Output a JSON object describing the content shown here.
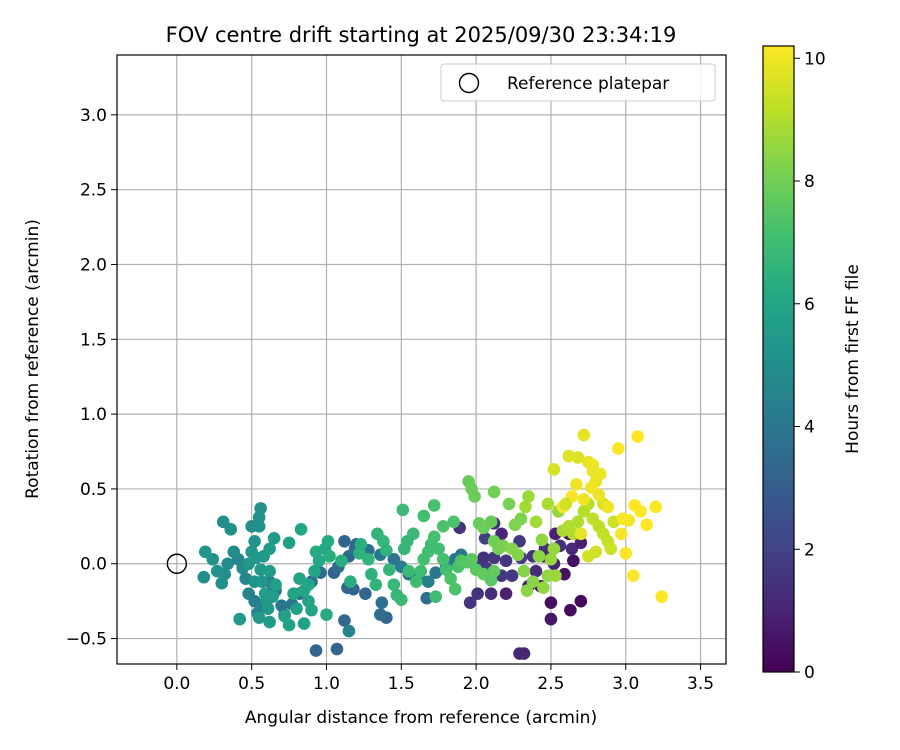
{
  "chart_data": {
    "type": "scatter",
    "title": "FOV centre drift starting at 2025/09/30 23:34:19",
    "xlabel": "Angular distance from reference (arcmin)",
    "ylabel": "Rotation from reference (arcmin)",
    "xlim": [
      -0.4,
      3.67
    ],
    "ylim": [
      -0.67,
      3.4
    ],
    "xticks": [
      0.0,
      0.5,
      1.0,
      1.5,
      2.0,
      2.5,
      3.0,
      3.5
    ],
    "xtick_labels": [
      "0.0",
      "0.5",
      "1.0",
      "1.5",
      "2.0",
      "2.5",
      "3.0",
      "3.5"
    ],
    "yticks": [
      -0.5,
      0.0,
      0.5,
      1.0,
      1.5,
      2.0,
      2.5,
      3.0
    ],
    "ytick_labels": [
      "−0.5",
      "0.0",
      "0.5",
      "1.0",
      "1.5",
      "2.0",
      "2.5",
      "3.0"
    ],
    "grid": true,
    "legend": {
      "position": "top-right",
      "entries": [
        "Reference platepar"
      ]
    },
    "reference_point": {
      "x": 0.0,
      "y": 0.0
    },
    "colorbar": {
      "label": "Hours from first FF file",
      "range": [
        0,
        10.2
      ],
      "ticks": [
        0,
        2,
        4,
        6,
        8,
        10
      ],
      "tick_labels": [
        "0",
        "2",
        "4",
        "6",
        "8",
        "10"
      ],
      "colormap": "viridis"
    },
    "points": [
      [
        2.29,
        -0.6,
        1.1
      ],
      [
        2.32,
        -0.6,
        1.1
      ],
      [
        2.5,
        -0.37,
        0.6
      ],
      [
        2.5,
        -0.26,
        0.4
      ],
      [
        2.63,
        -0.31,
        0.3
      ],
      [
        2.7,
        -0.25,
        0.2
      ],
      [
        2.59,
        -0.07,
        0.5
      ],
      [
        2.65,
        0.02,
        0.4
      ],
      [
        2.35,
        -0.15,
        0.8
      ],
      [
        2.43,
        -0.15,
        0.7
      ],
      [
        2.2,
        -0.2,
        1.0
      ],
      [
        2.1,
        -0.2,
        1.3
      ],
      [
        1.96,
        -0.26,
        1.5
      ],
      [
        2.01,
        -0.2,
        1.5
      ],
      [
        2.1,
        -0.1,
        1.6
      ],
      [
        2.17,
        -0.08,
        1.7
      ],
      [
        2.24,
        -0.08,
        1.6
      ],
      [
        2.07,
        -0.03,
        1.8
      ],
      [
        2.0,
        0.0,
        1.6
      ],
      [
        2.05,
        0.04,
        1.5
      ],
      [
        2.12,
        0.04,
        1.7
      ],
      [
        2.2,
        0.02,
        1.6
      ],
      [
        2.3,
        0.04,
        1.8
      ],
      [
        2.38,
        0.05,
        1.5
      ],
      [
        2.46,
        0.1,
        1.4
      ],
      [
        2.56,
        0.12,
        1.4
      ],
      [
        2.64,
        0.1,
        1.2
      ],
      [
        2.7,
        0.14,
        0.9
      ],
      [
        2.53,
        0.2,
        0.9
      ],
      [
        2.17,
        0.2,
        1.1
      ],
      [
        2.12,
        0.27,
        1.4
      ],
      [
        1.89,
        0.24,
        1.5
      ],
      [
        2.06,
        0.17,
        1.9
      ],
      [
        2.29,
        0.15,
        1.7
      ],
      [
        2.4,
        -0.05,
        1.3
      ],
      [
        2.52,
        0.0,
        1.0
      ],
      [
        2.62,
        0.2,
        0.8
      ],
      [
        2.45,
        0.05,
        1.2
      ],
      [
        1.4,
        -0.36,
        3.4
      ],
      [
        1.36,
        -0.34,
        3.6
      ],
      [
        1.12,
        -0.38,
        3.5
      ],
      [
        1.15,
        -0.45,
        4.5
      ],
      [
        1.07,
        -0.57,
        3.3
      ],
      [
        0.93,
        -0.58,
        3.3
      ],
      [
        1.14,
        -0.16,
        3.4
      ],
      [
        1.18,
        -0.17,
        3.3
      ],
      [
        1.26,
        -0.2,
        3.4
      ],
      [
        1.37,
        -0.26,
        3.7
      ],
      [
        1.05,
        -0.06,
        3.3
      ],
      [
        1.08,
        -0.02,
        3.5
      ],
      [
        1.15,
        0.05,
        3.4
      ],
      [
        1.19,
        0.1,
        3.5
      ],
      [
        1.12,
        0.15,
        3.3
      ],
      [
        1.2,
        0.13,
        3.4
      ],
      [
        1.28,
        0.09,
        3.8
      ],
      [
        1.36,
        0.06,
        4.1
      ],
      [
        1.45,
        0.03,
        3.9
      ],
      [
        1.5,
        -0.02,
        4.2
      ],
      [
        1.55,
        -0.07,
        3.8
      ],
      [
        1.62,
        -0.1,
        4.4
      ],
      [
        1.68,
        -0.12,
        4.3
      ],
      [
        1.73,
        -0.06,
        4.0
      ],
      [
        1.8,
        -0.02,
        4.2
      ],
      [
        1.86,
        0.03,
        4.0
      ],
      [
        1.9,
        0.06,
        4.1
      ],
      [
        1.67,
        -0.23,
        3.7
      ],
      [
        0.96,
        -0.06,
        3.6
      ],
      [
        0.9,
        -0.12,
        3.7
      ],
      [
        0.82,
        -0.2,
        3.8
      ],
      [
        0.77,
        -0.27,
        3.9
      ],
      [
        0.72,
        -0.34,
        3.8
      ],
      [
        0.7,
        -0.28,
        4.0
      ],
      [
        0.66,
        -0.18,
        4.2
      ],
      [
        0.62,
        -0.12,
        4.3
      ],
      [
        0.6,
        -0.2,
        4.1
      ],
      [
        0.58,
        -0.27,
        4.2
      ],
      [
        0.54,
        -0.33,
        4.4
      ],
      [
        0.52,
        -0.25,
        4.3
      ],
      [
        0.48,
        -0.2,
        4.5
      ],
      [
        0.46,
        -0.1,
        4.6
      ],
      [
        0.44,
        -0.03,
        4.8
      ],
      [
        0.41,
        0.03,
        4.7
      ],
      [
        0.38,
        0.08,
        4.9
      ],
      [
        0.34,
        0.0,
        4.8
      ],
      [
        0.32,
        -0.07,
        4.9
      ],
      [
        0.3,
        -0.13,
        5.0
      ],
      [
        0.27,
        -0.05,
        5.1
      ],
      [
        0.24,
        0.03,
        5.2
      ],
      [
        0.19,
        0.08,
        5.3
      ],
      [
        0.18,
        -0.09,
        5.0
      ],
      [
        0.31,
        0.28,
        5.0
      ],
      [
        0.36,
        0.23,
        5.1
      ],
      [
        0.42,
        -0.37,
        5.4
      ],
      [
        0.52,
        -0.12,
        5.2
      ],
      [
        0.48,
        0.0,
        5.4
      ],
      [
        0.5,
        0.08,
        5.3
      ],
      [
        0.52,
        0.15,
        5.2
      ],
      [
        0.55,
        0.25,
        5.1
      ],
      [
        0.55,
        0.31,
        5.0
      ],
      [
        0.56,
        0.37,
        5.2
      ],
      [
        0.5,
        0.25,
        5.0
      ],
      [
        0.53,
        0.04,
        5.4
      ],
      [
        0.56,
        -0.04,
        5.5
      ],
      [
        0.57,
        -0.12,
        5.3
      ],
      [
        0.59,
        -0.2,
        5.6
      ],
      [
        0.6,
        -0.25,
        5.4
      ],
      [
        0.61,
        -0.3,
        5.5
      ],
      [
        0.64,
        -0.22,
        5.6
      ],
      [
        0.66,
        -0.14,
        5.7
      ],
      [
        0.62,
        -0.05,
        5.6
      ],
      [
        0.58,
        0.05,
        5.4
      ],
      [
        0.62,
        0.1,
        5.6
      ],
      [
        0.65,
        0.17,
        5.5
      ],
      [
        0.55,
        -0.36,
        5.4
      ],
      [
        0.62,
        -0.39,
        5.6
      ],
      [
        0.72,
        -0.35,
        5.8
      ],
      [
        0.75,
        -0.41,
        5.9
      ],
      [
        0.8,
        -0.3,
        5.8
      ],
      [
        0.78,
        -0.2,
        5.9
      ],
      [
        0.85,
        -0.18,
        6.0
      ],
      [
        0.88,
        -0.25,
        5.8
      ],
      [
        0.9,
        -0.31,
        6.0
      ],
      [
        0.85,
        -0.4,
        5.8
      ],
      [
        0.88,
        -0.14,
        6.0
      ],
      [
        0.82,
        -0.1,
        5.9
      ],
      [
        0.92,
        -0.05,
        6.0
      ],
      [
        0.95,
        0.02,
        6.1
      ],
      [
        0.93,
        0.08,
        6.2
      ],
      [
        0.99,
        0.1,
        6.1
      ],
      [
        1.01,
        0.15,
        6.2
      ],
      [
        0.83,
        0.23,
        6.0
      ],
      [
        0.75,
        0.14,
        5.7
      ],
      [
        1.0,
        -0.34,
        6.2
      ],
      [
        1.02,
        0.05,
        6.3
      ],
      [
        1.1,
        0.02,
        6.3
      ],
      [
        1.16,
        -0.12,
        6.4
      ],
      [
        1.22,
        0.07,
        6.5
      ],
      [
        1.23,
        0.13,
        6.4
      ],
      [
        1.28,
        0.03,
        6.6
      ],
      [
        1.3,
        -0.07,
        6.5
      ],
      [
        1.33,
        -0.14,
        6.6
      ],
      [
        1.34,
        0.2,
        6.6
      ],
      [
        1.38,
        0.15,
        6.7
      ],
      [
        1.4,
        0.09,
        6.6
      ],
      [
        1.42,
        -0.04,
        6.7
      ],
      [
        1.45,
        -0.14,
        6.8
      ],
      [
        1.47,
        -0.21,
        6.7
      ],
      [
        1.5,
        -0.24,
        6.9
      ],
      [
        1.52,
        0.1,
        6.7
      ],
      [
        1.54,
        0.15,
        6.8
      ],
      [
        1.58,
        0.2,
        6.9
      ],
      [
        1.51,
        0.36,
        6.9
      ],
      [
        1.55,
        -0.05,
        6.9
      ],
      [
        1.6,
        -0.12,
        7.0
      ],
      [
        1.63,
        -0.05,
        7.0
      ],
      [
        1.65,
        0.03,
        7.1
      ],
      [
        1.68,
        0.08,
        7.1
      ],
      [
        1.7,
        0.13,
        7.0
      ],
      [
        1.72,
        0.18,
        7.2
      ],
      [
        1.75,
        0.1,
        7.1
      ],
      [
        1.78,
        0.03,
        7.2
      ],
      [
        1.8,
        -0.04,
        7.1
      ],
      [
        1.83,
        -0.1,
        7.3
      ],
      [
        1.86,
        -0.17,
        7.3
      ],
      [
        1.88,
        -0.02,
        7.2
      ],
      [
        1.9,
        0.02,
        7.4
      ],
      [
        1.65,
        0.32,
        7.1
      ],
      [
        1.72,
        0.39,
        7.2
      ],
      [
        1.78,
        0.25,
        7.3
      ],
      [
        1.85,
        0.28,
        7.3
      ],
      [
        1.73,
        -0.22,
        7.0
      ],
      [
        1.94,
        0.01,
        7.5
      ],
      [
        1.97,
        0.03,
        7.6
      ],
      [
        2.0,
        -0.04,
        7.6
      ],
      [
        2.05,
        -0.07,
        7.7
      ],
      [
        2.1,
        -0.11,
        7.6
      ],
      [
        2.12,
        -0.05,
        7.7
      ],
      [
        1.95,
        0.55,
        7.8
      ],
      [
        1.97,
        0.5,
        7.9
      ],
      [
        1.99,
        0.45,
        7.9
      ],
      [
        2.02,
        0.27,
        7.8
      ],
      [
        2.05,
        0.24,
        7.9
      ],
      [
        2.1,
        0.28,
        7.8
      ],
      [
        2.12,
        0.15,
        8.0
      ],
      [
        2.15,
        0.1,
        8.0
      ],
      [
        2.18,
        0.12,
        8.1
      ],
      [
        2.12,
        0.48,
        8.0
      ],
      [
        2.22,
        0.4,
        8.1
      ],
      [
        2.26,
        0.26,
        8.2
      ],
      [
        2.3,
        0.3,
        8.2
      ],
      [
        2.24,
        0.1,
        8.3
      ],
      [
        2.28,
        0.06,
        8.3
      ],
      [
        2.32,
        -0.05,
        8.3
      ],
      [
        2.34,
        -0.18,
        8.4
      ],
      [
        2.38,
        -0.12,
        8.4
      ],
      [
        2.42,
        0.05,
        8.4
      ],
      [
        2.44,
        0.16,
        8.5
      ],
      [
        2.45,
        -0.16,
        8.5
      ],
      [
        2.48,
        -0.08,
        8.5
      ],
      [
        2.5,
        0.03,
        8.6
      ],
      [
        2.52,
        0.1,
        8.6
      ],
      [
        2.53,
        -0.08,
        8.7
      ],
      [
        2.55,
        0.35,
        8.6
      ],
      [
        2.35,
        0.45,
        8.7
      ],
      [
        2.33,
        0.38,
        8.8
      ],
      [
        2.4,
        0.28,
        8.8
      ],
      [
        2.48,
        0.4,
        8.9
      ],
      [
        2.58,
        0.22,
        8.9
      ],
      [
        2.62,
        0.25,
        9.0
      ],
      [
        2.65,
        0.2,
        9.0
      ],
      [
        2.68,
        0.28,
        9.0
      ],
      [
        2.72,
        0.35,
        9.1
      ],
      [
        2.75,
        0.4,
        9.1
      ],
      [
        2.78,
        0.3,
        9.2
      ],
      [
        2.82,
        0.25,
        9.2
      ],
      [
        2.85,
        0.2,
        9.3
      ],
      [
        2.88,
        0.15,
        9.3
      ],
      [
        2.9,
        0.1,
        9.4
      ],
      [
        2.92,
        0.28,
        9.4
      ],
      [
        2.8,
        0.08,
        9.5
      ],
      [
        2.75,
        0.05,
        9.5
      ],
      [
        2.85,
        0.4,
        9.6
      ],
      [
        2.52,
        0.63,
        9.6
      ],
      [
        2.62,
        0.72,
        9.7
      ],
      [
        2.68,
        0.71,
        9.7
      ],
      [
        2.72,
        0.86,
        9.8
      ],
      [
        2.75,
        0.68,
        9.8
      ],
      [
        2.78,
        0.62,
        9.9
      ],
      [
        2.8,
        0.55,
        9.9
      ],
      [
        2.82,
        0.46,
        9.9
      ],
      [
        2.77,
        0.51,
        10.0
      ],
      [
        2.72,
        0.43,
        10.0
      ],
      [
        2.67,
        0.53,
        10.0
      ],
      [
        2.64,
        0.45,
        10.1
      ],
      [
        2.58,
        0.38,
        10.1
      ],
      [
        2.95,
        0.77,
        10.1
      ],
      [
        3.08,
        0.85,
        10.2
      ],
      [
        2.98,
        0.3,
        10.1
      ],
      [
        3.02,
        0.29,
        10.1
      ],
      [
        3.06,
        0.39,
        10.2
      ],
      [
        3.1,
        0.35,
        10.2
      ],
      [
        3.14,
        0.26,
        10.2
      ],
      [
        3.2,
        0.38,
        10.2
      ],
      [
        3.0,
        0.07,
        10.2
      ],
      [
        3.05,
        -0.08,
        10.2
      ],
      [
        3.24,
        -0.22,
        10.2
      ],
      [
        2.97,
        0.2,
        10.1
      ],
      [
        2.88,
        0.38,
        10.0
      ],
      [
        2.7,
        0.2,
        9.8
      ],
      [
        2.83,
        0.6,
        9.9
      ],
      [
        2.78,
        0.66,
        10.0
      ],
      [
        2.6,
        0.4,
        9.5
      ]
    ]
  }
}
